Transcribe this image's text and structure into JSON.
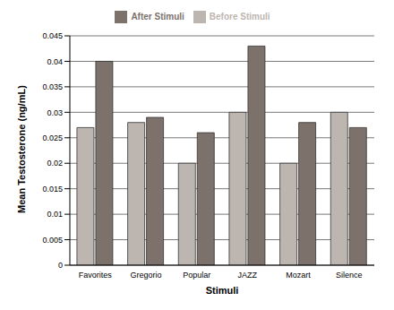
{
  "chart_data": {
    "type": "bar",
    "x_label": "Stimuli",
    "y_label": "Mean Testosterone (ng/mL)",
    "categories": [
      "Favorites",
      "Gregorio",
      "Popular",
      "JAZZ",
      "Mozart",
      "Silence"
    ],
    "series": [
      {
        "name": "Before Stimuli",
        "color": "#bdb6b0",
        "values": [
          0.027,
          0.028,
          0.02,
          0.03,
          0.02,
          0.03
        ]
      },
      {
        "name": "After Stimuli",
        "color": "#7d716b",
        "values": [
          0.04,
          0.029,
          0.026,
          0.043,
          0.028,
          0.027
        ]
      }
    ],
    "ylim": [
      0,
      0.045
    ],
    "yticks": [
      0,
      0.005,
      0.01,
      0.015,
      0.02,
      0.025,
      0.03,
      0.035,
      0.04,
      0.045
    ],
    "grid": true,
    "legend": "top"
  }
}
